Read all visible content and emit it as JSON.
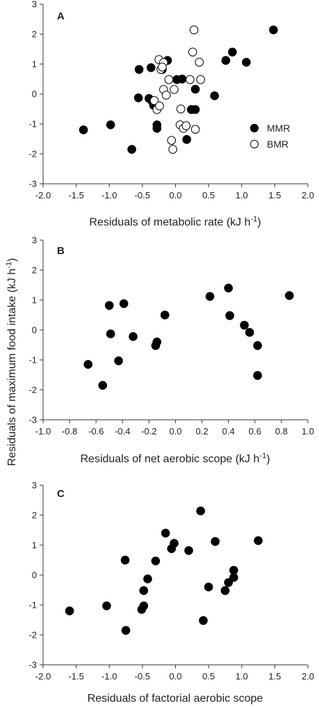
{
  "ylabel_shared": "Residuals of maximum food intake (kJ h",
  "ylabel_shared_sup": "-1",
  "ylabel_shared_end": ")",
  "chart_data": [
    {
      "type": "scatter",
      "panel": "A",
      "xlabel": "Residuals of metabolic rate (kJ h",
      "xlabel_sup": "-1",
      "xlabel_end": ")",
      "xlim": [
        -2.0,
        2.0
      ],
      "ylim": [
        -3,
        3
      ],
      "xticks": [
        "-2.0",
        "-1.5",
        "-1.0",
        "-0.5",
        "0.0",
        "0.5",
        "1.0",
        "1.5",
        "2.0"
      ],
      "yticks": [
        "-3",
        "-2",
        "-1",
        "0",
        "1",
        "2",
        "3"
      ],
      "legend": {
        "placement": "bottom-right"
      },
      "series": [
        {
          "name": "MMR",
          "marker": "filled",
          "points": [
            [
              -1.39,
              -1.2
            ],
            [
              -0.98,
              -1.03
            ],
            [
              -0.66,
              -1.85
            ],
            [
              -0.55,
              0.82
            ],
            [
              -0.56,
              -0.13
            ],
            [
              -0.37,
              0.88
            ],
            [
              -0.33,
              -0.38
            ],
            [
              -0.28,
              -1.03
            ],
            [
              -0.28,
              -1.15
            ],
            [
              -0.2,
              0.82
            ],
            [
              -0.12,
              1.12
            ],
            [
              0.02,
              0.48
            ],
            [
              0.1,
              0.5
            ],
            [
              0.17,
              -1.52
            ],
            [
              0.24,
              -0.52
            ],
            [
              0.3,
              -0.52
            ],
            [
              0.3,
              0.16
            ],
            [
              0.59,
              -0.06
            ],
            [
              0.76,
              1.12
            ],
            [
              0.86,
              1.4
            ],
            [
              1.07,
              1.06
            ],
            [
              1.48,
              2.14
            ],
            [
              -0.4,
              -0.15
            ],
            [
              -0.35,
              -0.25
            ]
          ]
        },
        {
          "name": "BMR",
          "marker": "open",
          "points": [
            [
              -0.32,
              -0.22
            ],
            [
              -0.28,
              -0.52
            ],
            [
              -0.25,
              1.15
            ],
            [
              -0.22,
              0.82
            ],
            [
              -0.18,
              0.15
            ],
            [
              -0.14,
              -0.04
            ],
            [
              -0.1,
              0.48
            ],
            [
              -0.06,
              -1.55
            ],
            [
              -0.04,
              -1.85
            ],
            [
              -0.02,
              0.15
            ],
            [
              0.07,
              -1.03
            ],
            [
              0.08,
              -0.5
            ],
            [
              0.12,
              -1.15
            ],
            [
              0.16,
              -1.06
            ],
            [
              0.22,
              0.48
            ],
            [
              0.26,
              1.4
            ],
            [
              0.28,
              2.14
            ],
            [
              0.3,
              -1.18
            ],
            [
              0.36,
              1.06
            ],
            [
              0.38,
              0.48
            ],
            [
              -0.24,
              -0.4
            ],
            [
              -0.18,
              1.05
            ],
            [
              -0.2,
              0.9
            ]
          ]
        }
      ]
    },
    {
      "type": "scatter",
      "panel": "B",
      "xlabel": "Residuals of net aerobic scope  (kJ h",
      "xlabel_sup": "-1",
      "xlabel_end": ")",
      "xlim": [
        -1.0,
        1.0
      ],
      "ylim": [
        -3,
        3
      ],
      "xticks": [
        "-1.0",
        "-0.8",
        "-0.6",
        "-0.4",
        "-0.2",
        "0.0",
        "0.2",
        "0.4",
        "0.6",
        "0.8",
        "1.0"
      ],
      "yticks": [
        "-3",
        "-2",
        "-1",
        "0",
        "1",
        "2",
        "3"
      ],
      "series": [
        {
          "marker": "filled",
          "points": [
            [
              -0.66,
              -1.15
            ],
            [
              -0.55,
              -1.85
            ],
            [
              -0.5,
              0.82
            ],
            [
              -0.49,
              -0.13
            ],
            [
              -0.43,
              -1.03
            ],
            [
              -0.39,
              0.88
            ],
            [
              -0.32,
              -0.22
            ],
            [
              -0.15,
              -0.52
            ],
            [
              -0.14,
              -0.4
            ],
            [
              -0.08,
              0.5
            ],
            [
              0.26,
              1.12
            ],
            [
              0.4,
              1.4
            ],
            [
              0.41,
              0.48
            ],
            [
              0.52,
              0.16
            ],
            [
              0.56,
              -0.08
            ],
            [
              0.62,
              -0.52
            ],
            [
              0.62,
              -1.52
            ],
            [
              0.86,
              1.15
            ]
          ]
        }
      ]
    },
    {
      "type": "scatter",
      "panel": "C",
      "xlabel": "Residuals of factorial aerobic scope",
      "xlim": [
        -2.0,
        2.0
      ],
      "ylim": [
        -3,
        3
      ],
      "xticks": [
        "-2.0",
        "-1.5",
        "-1.0",
        "-0.5",
        "0.0",
        "0.5",
        "1.0",
        "1.5",
        "2.0"
      ],
      "yticks": [
        "-3",
        "-2",
        "-1",
        "0",
        "1",
        "2",
        "3"
      ],
      "series": [
        {
          "marker": "filled",
          "points": [
            [
              -1.6,
              -1.2
            ],
            [
              -1.04,
              -1.03
            ],
            [
              -0.76,
              0.5
            ],
            [
              -0.75,
              -1.85
            ],
            [
              -0.42,
              -0.13
            ],
            [
              -0.48,
              -0.52
            ],
            [
              -0.51,
              -1.15
            ],
            [
              -0.48,
              -1.03
            ],
            [
              -0.3,
              0.47
            ],
            [
              -0.15,
              1.4
            ],
            [
              -0.06,
              0.88
            ],
            [
              -0.02,
              1.06
            ],
            [
              0.2,
              0.82
            ],
            [
              0.38,
              2.14
            ],
            [
              0.42,
              -1.52
            ],
            [
              0.5,
              -0.4
            ],
            [
              0.6,
              1.12
            ],
            [
              0.75,
              -0.52
            ],
            [
              0.8,
              -0.25
            ],
            [
              0.88,
              0.16
            ],
            [
              0.88,
              -0.08
            ],
            [
              1.25,
              1.15
            ]
          ]
        }
      ]
    }
  ]
}
